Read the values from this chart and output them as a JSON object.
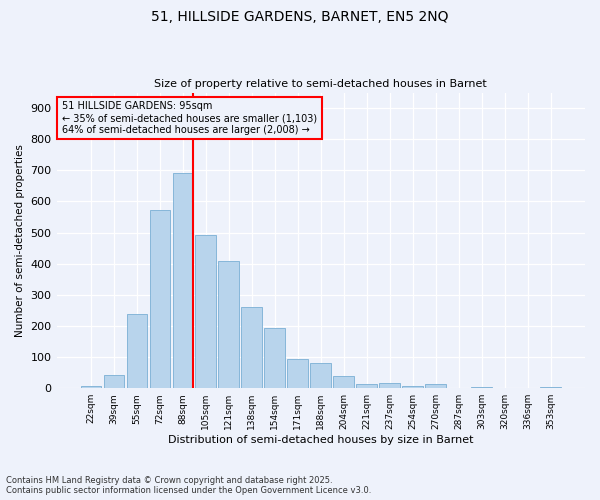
{
  "title1": "51, HILLSIDE GARDENS, BARNET, EN5 2NQ",
  "title2": "Size of property relative to semi-detached houses in Barnet",
  "xlabel": "Distribution of semi-detached houses by size in Barnet",
  "ylabel": "Number of semi-detached properties",
  "categories": [
    "22sqm",
    "39sqm",
    "55sqm",
    "72sqm",
    "88sqm",
    "105sqm",
    "121sqm",
    "138sqm",
    "154sqm",
    "171sqm",
    "188sqm",
    "204sqm",
    "221sqm",
    "237sqm",
    "254sqm",
    "270sqm",
    "287sqm",
    "303sqm",
    "320sqm",
    "336sqm",
    "353sqm"
  ],
  "values": [
    8,
    42,
    238,
    573,
    692,
    493,
    410,
    260,
    193,
    93,
    80,
    38,
    13,
    18,
    8,
    13,
    0,
    5,
    0,
    0,
    3
  ],
  "bar_color": "#b8d4ec",
  "bar_edge_color": "#7aafd4",
  "vline_index": 4,
  "vline_color": "red",
  "annotation_title": "51 HILLSIDE GARDENS: 95sqm",
  "annotation_line1": "← 35% of semi-detached houses are smaller (1,103)",
  "annotation_line2": "64% of semi-detached houses are larger (2,008) →",
  "annotation_box_color": "red",
  "footer_line1": "Contains HM Land Registry data © Crown copyright and database right 2025.",
  "footer_line2": "Contains public sector information licensed under the Open Government Licence v3.0.",
  "bg_color": "#eef2fb",
  "ylim": [
    0,
    950
  ],
  "yticks": [
    0,
    100,
    200,
    300,
    400,
    500,
    600,
    700,
    800,
    900
  ]
}
